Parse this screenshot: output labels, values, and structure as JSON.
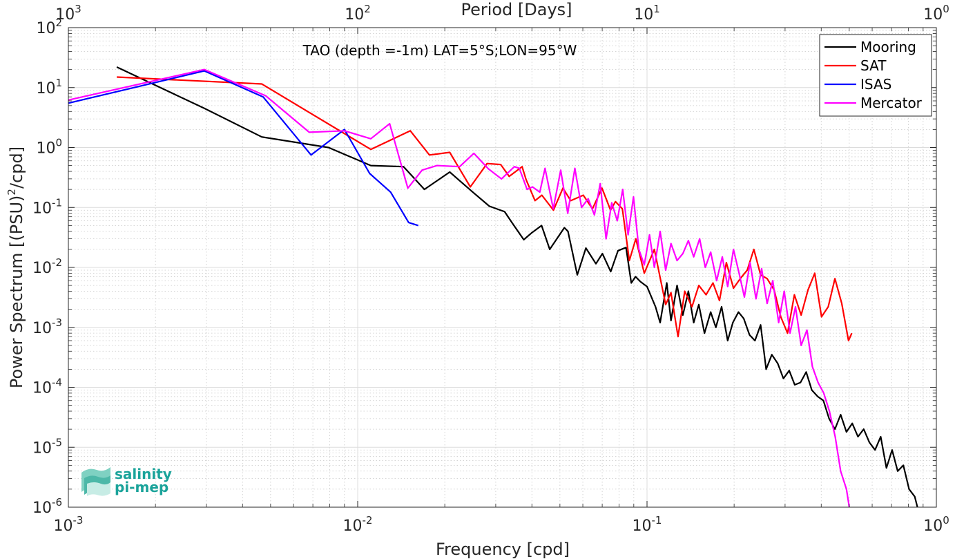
{
  "chart_data": {
    "type": "line",
    "title": "TAO (depth =-1m) LAT=5°S;LON=95°W",
    "xlabel": "Frequency [cpd]",
    "ylabel_main": "Power Spectrum [(PSU)",
    "ylabel_sup": "2",
    "ylabel_tail": "/cpd]",
    "x2label": "Period [Days]",
    "x_scale": "log",
    "y_scale": "log",
    "xlim": [
      0.001,
      1
    ],
    "ylim": [
      1e-06,
      100
    ],
    "grid": true,
    "legend_position": "top-right",
    "x_ticks": [
      {
        "base": "10",
        "exp": "-3"
      },
      {
        "base": "10",
        "exp": "-2"
      },
      {
        "base": "10",
        "exp": "-1"
      },
      {
        "base": "10",
        "exp": "0"
      }
    ],
    "x2_ticks": [
      {
        "base": "10",
        "exp": "3"
      },
      {
        "base": "10",
        "exp": "2"
      },
      {
        "base": "10",
        "exp": "1"
      },
      {
        "base": "10",
        "exp": "0"
      }
    ],
    "y_ticks": [
      {
        "base": "10",
        "exp": "2"
      },
      {
        "base": "10",
        "exp": "1"
      },
      {
        "base": "10",
        "exp": "0"
      },
      {
        "base": "10",
        "exp": "-1"
      },
      {
        "base": "10",
        "exp": "-2"
      },
      {
        "base": "10",
        "exp": "-3"
      },
      {
        "base": "10",
        "exp": "-4"
      },
      {
        "base": "10",
        "exp": "-5"
      },
      {
        "base": "10",
        "exp": "-6"
      }
    ],
    "series": [
      {
        "name": "Mooring",
        "color": "#000000",
        "x": [
          0.00147,
          0.00295,
          0.00466,
          0.00793,
          0.0111,
          0.0144,
          0.017,
          0.0208,
          0.025,
          0.0285,
          0.0322,
          0.0342,
          0.0375,
          0.04,
          0.0432,
          0.0461,
          0.0518,
          0.0533,
          0.0574,
          0.0615,
          0.0666,
          0.0701,
          0.0749,
          0.0794,
          0.0846,
          0.0882,
          0.0913,
          0.0948,
          0.1,
          0.107,
          0.111,
          0.117,
          0.121,
          0.127,
          0.133,
          0.139,
          0.145,
          0.151,
          0.158,
          0.166,
          0.173,
          0.181,
          0.19,
          0.198,
          0.207,
          0.216,
          0.226,
          0.236,
          0.247,
          0.258,
          0.27,
          0.283,
          0.296,
          0.31,
          0.324,
          0.339,
          0.355,
          0.371,
          0.389,
          0.407,
          0.426,
          0.446,
          0.467,
          0.489,
          0.512,
          0.536,
          0.561,
          0.587,
          0.614,
          0.642,
          0.672,
          0.703,
          0.735,
          0.769,
          0.805,
          0.842,
          0.86
        ],
        "y": [
          22,
          4.5,
          1.5,
          1.0,
          0.5,
          0.48,
          0.2,
          0.39,
          0.18,
          0.105,
          0.085,
          0.055,
          0.029,
          0.038,
          0.05,
          0.02,
          0.046,
          0.04,
          0.0075,
          0.021,
          0.0115,
          0.017,
          0.0085,
          0.019,
          0.0215,
          0.0055,
          0.007,
          0.0058,
          0.0048,
          0.0022,
          0.0012,
          0.0055,
          0.0013,
          0.005,
          0.0016,
          0.004,
          0.0012,
          0.0024,
          0.0008,
          0.0018,
          0.001,
          0.0022,
          0.0006,
          0.0012,
          0.0018,
          0.0014,
          0.00075,
          0.0006,
          0.0011,
          0.0002,
          0.00035,
          0.00025,
          0.00014,
          0.00019,
          0.00011,
          0.00012,
          0.00018,
          9e-05,
          7e-05,
          6e-05,
          3e-05,
          2e-05,
          3.5e-05,
          1.8e-05,
          2.5e-05,
          1.5e-05,
          2e-05,
          1.2e-05,
          9e-06,
          1.5e-05,
          4.5e-06,
          9e-06,
          4e-06,
          5e-06,
          2e-06,
          1.5e-06,
          1e-06
        ]
      },
      {
        "name": "SAT",
        "color": "#ff0000",
        "x": [
          0.00147,
          0.00466,
          0.0111,
          0.0152,
          0.0177,
          0.0208,
          0.0245,
          0.028,
          0.0312,
          0.0334,
          0.037,
          0.0382,
          0.041,
          0.0433,
          0.0475,
          0.0512,
          0.0545,
          0.0602,
          0.0648,
          0.0699,
          0.0748,
          0.0778,
          0.0822,
          0.0869,
          0.0915,
          0.0978,
          0.106,
          0.116,
          0.121,
          0.128,
          0.135,
          0.143,
          0.151,
          0.16,
          0.169,
          0.178,
          0.188,
          0.199,
          0.21,
          0.222,
          0.234,
          0.247,
          0.26,
          0.275,
          0.29,
          0.306,
          0.323,
          0.341,
          0.36,
          0.38,
          0.401,
          0.423,
          0.446,
          0.471,
          0.497,
          0.51
        ],
        "y": [
          15,
          11.5,
          0.93,
          1.9,
          0.75,
          0.83,
          0.22,
          0.54,
          0.52,
          0.33,
          0.48,
          0.29,
          0.13,
          0.16,
          0.09,
          0.21,
          0.13,
          0.16,
          0.095,
          0.21,
          0.09,
          0.125,
          0.095,
          0.013,
          0.03,
          0.008,
          0.02,
          0.0024,
          0.0038,
          0.0007,
          0.004,
          0.0022,
          0.005,
          0.0035,
          0.0055,
          0.0028,
          0.012,
          0.0045,
          0.0065,
          0.009,
          0.02,
          0.0075,
          0.0065,
          0.0042,
          0.0015,
          0.0008,
          0.0035,
          0.0016,
          0.0042,
          0.008,
          0.0015,
          0.0022,
          0.0065,
          0.0025,
          0.0006,
          0.0008
        ]
      },
      {
        "name": "ISAS",
        "color": "#0000ff",
        "x": [
          0.001,
          0.00295,
          0.00471,
          0.0069,
          0.009,
          0.011,
          0.013,
          0.015,
          0.0162
        ],
        "y": [
          5.5,
          19,
          7.0,
          0.75,
          2.0,
          0.37,
          0.18,
          0.056,
          0.05
        ]
      },
      {
        "name": "Mercator",
        "color": "#ff00ff",
        "x": [
          0.001,
          0.00295,
          0.00481,
          0.0068,
          0.009,
          0.0111,
          0.0129,
          0.0149,
          0.0167,
          0.0188,
          0.0225,
          0.0252,
          0.0283,
          0.0314,
          0.0348,
          0.0362,
          0.0385,
          0.0402,
          0.0426,
          0.0444,
          0.0474,
          0.0503,
          0.0532,
          0.0563,
          0.0594,
          0.0626,
          0.0658,
          0.0689,
          0.0722,
          0.0755,
          0.0789,
          0.0824,
          0.086,
          0.0898,
          0.0937,
          0.0978,
          0.102,
          0.106,
          0.111,
          0.116,
          0.121,
          0.127,
          0.133,
          0.139,
          0.145,
          0.152,
          0.159,
          0.166,
          0.174,
          0.182,
          0.19,
          0.199,
          0.208,
          0.217,
          0.227,
          0.238,
          0.249,
          0.26,
          0.272,
          0.285,
          0.298,
          0.312,
          0.326,
          0.341,
          0.357,
          0.373,
          0.39,
          0.408,
          0.427,
          0.447,
          0.467,
          0.489,
          0.5
        ],
        "y": [
          6.2,
          20,
          7.3,
          1.8,
          1.9,
          1.4,
          2.5,
          0.21,
          0.42,
          0.5,
          0.48,
          0.8,
          0.44,
          0.3,
          0.48,
          0.45,
          0.2,
          0.22,
          0.18,
          0.45,
          0.095,
          0.42,
          0.08,
          0.45,
          0.1,
          0.14,
          0.075,
          0.25,
          0.03,
          0.12,
          0.06,
          0.2,
          0.035,
          0.15,
          0.02,
          0.011,
          0.035,
          0.01,
          0.04,
          0.009,
          0.025,
          0.013,
          0.017,
          0.028,
          0.015,
          0.03,
          0.01,
          0.018,
          0.006,
          0.015,
          0.0048,
          0.02,
          0.008,
          0.0032,
          0.012,
          0.003,
          0.0095,
          0.0025,
          0.006,
          0.0012,
          0.004,
          0.0008,
          0.0022,
          0.0005,
          0.0009,
          0.00022,
          0.00012,
          8e-05,
          4e-05,
          1.5e-05,
          4e-06,
          2e-06,
          1e-06
        ]
      }
    ]
  },
  "logo": {
    "line1": "salinity",
    "line2": "pi-mep",
    "color": "#1aa39a"
  }
}
